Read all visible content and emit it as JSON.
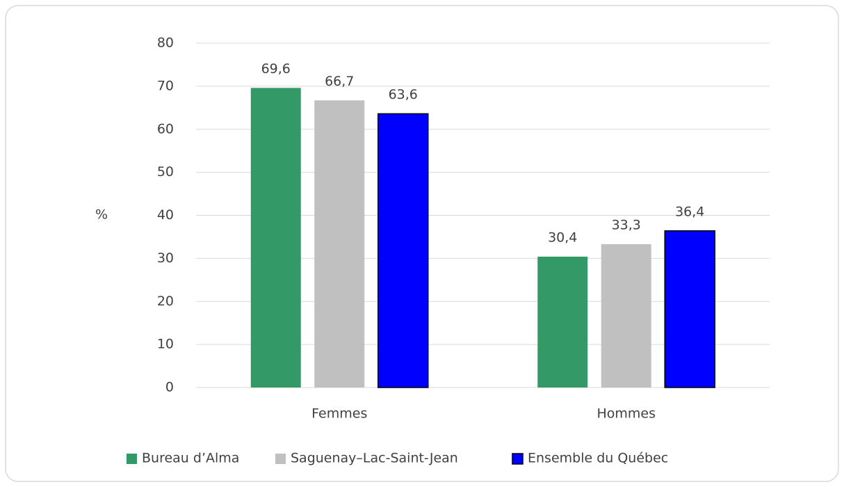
{
  "chart_data": {
    "type": "bar",
    "y_label": "%",
    "categories": [
      "Femmes",
      "Hommes"
    ],
    "series": [
      {
        "name": "Bureau d’Alma",
        "color": "#339966",
        "values": [
          69.6,
          30.4
        ],
        "value_labels": [
          "69,6",
          "30,4"
        ]
      },
      {
        "name": "Saguenay–Lac-Saint-Jean",
        "color": "#c0c0c0",
        "values": [
          66.7,
          33.3
        ],
        "value_labels": [
          "66,7",
          "33,3"
        ]
      },
      {
        "name": "Ensemble du Québec",
        "color": "#0000ff",
        "edgecolor": "#000000",
        "values": [
          63.6,
          36.4
        ],
        "value_labels": [
          "63,6",
          "36,4"
        ]
      }
    ],
    "ylim": [
      0,
      80
    ],
    "yticks": [
      0,
      10,
      20,
      30,
      40,
      50,
      60,
      70,
      80
    ],
    "grid": true,
    "legend": "bottom"
  }
}
